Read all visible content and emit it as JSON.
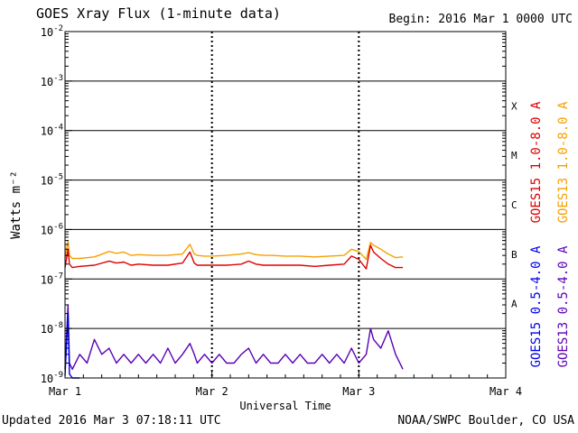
{
  "header": {
    "title": "GOES Xray Flux (1-minute data)",
    "begin": "Begin:  2016 Mar 1 0000 UTC"
  },
  "footer": {
    "updated": "Updated 2016 Mar  3 07:18:11 UTC",
    "credit": "NOAA/SWPC Boulder, CO USA"
  },
  "colors": {
    "goes15_long": "#dd0000",
    "goes13_long": "#f5a000",
    "goes15_short": "#0000ee",
    "goes13_short": "#5a00b4",
    "grid": "#000000"
  },
  "chart_data": {
    "type": "line",
    "title": "GOES Xray Flux (1-minute data)",
    "xlabel": "Universal Time",
    "ylabel": "Watts m⁻²",
    "yscale": "log",
    "ylim": [
      1e-09,
      0.01
    ],
    "xlim": [
      0,
      3
    ],
    "x_unit": "days since Mar 1 0000 UTC",
    "x_ticks": [
      {
        "value": 0,
        "label": "Mar 1"
      },
      {
        "value": 1,
        "label": "Mar 2"
      },
      {
        "value": 2,
        "label": "Mar 3"
      },
      {
        "value": 3,
        "label": "Mar 4"
      }
    ],
    "y_ticks": [
      {
        "exp": -9,
        "label": "10",
        "sup": "-9"
      },
      {
        "exp": -8,
        "label": "10",
        "sup": "-8"
      },
      {
        "exp": -7,
        "label": "10",
        "sup": "-7"
      },
      {
        "exp": -6,
        "label": "10",
        "sup": "-6"
      },
      {
        "exp": -5,
        "label": "10",
        "sup": "-5"
      },
      {
        "exp": -4,
        "label": "10",
        "sup": "-4"
      },
      {
        "exp": -3,
        "label": "10",
        "sup": "-3"
      },
      {
        "exp": -2,
        "label": "10",
        "sup": "-2"
      }
    ],
    "flare_classes": [
      {
        "label": "A",
        "exp": -8
      },
      {
        "label": "B",
        "exp": -7
      },
      {
        "label": "C",
        "exp": -6
      },
      {
        "label": "M",
        "exp": -5
      },
      {
        "label": "X",
        "exp": -4
      }
    ],
    "grid": true,
    "legend_right_top": [
      {
        "name": "GOES15 1.0-8.0 A",
        "color": "#dd0000"
      },
      {
        "name": "GOES13 1.0-8.0 A",
        "color": "#f5a000"
      }
    ],
    "legend_right_bottom": [
      {
        "name": "GOES15 0.5-4.0 A",
        "color": "#0000ee"
      },
      {
        "name": "GOES13 0.5-4.0 A",
        "color": "#5a00b4"
      }
    ],
    "series": [
      {
        "name": "GOES13 1.0-8.0 A",
        "color": "#f5a000",
        "x": [
          0.0,
          0.02,
          0.03,
          0.05,
          0.1,
          0.2,
          0.3,
          0.35,
          0.4,
          0.45,
          0.5,
          0.6,
          0.7,
          0.8,
          0.85,
          0.88,
          0.9,
          0.95,
          1.0,
          1.1,
          1.2,
          1.25,
          1.3,
          1.35,
          1.4,
          1.5,
          1.6,
          1.7,
          1.8,
          1.9,
          1.95,
          2.0,
          2.05,
          2.08,
          2.1,
          2.15,
          2.2,
          2.25,
          2.3
        ],
        "y": [
          2.6e-07,
          6e-07,
          3e-07,
          2.6e-07,
          2.6e-07,
          2.8e-07,
          3.6e-07,
          3.3e-07,
          3.5e-07,
          3e-07,
          3.1e-07,
          3e-07,
          3e-07,
          3.2e-07,
          5e-07,
          3.2e-07,
          3e-07,
          2.9e-07,
          2.9e-07,
          3e-07,
          3.2e-07,
          3.4e-07,
          3.1e-07,
          3e-07,
          3e-07,
          2.9e-07,
          2.9e-07,
          2.8e-07,
          2.9e-07,
          3e-07,
          4e-07,
          3.6e-07,
          2.5e-07,
          5.5e-07,
          4.8e-07,
          4e-07,
          3.2e-07,
          2.7e-07,
          2.8e-07
        ]
      },
      {
        "name": "GOES15 1.0-8.0 A",
        "color": "#dd0000",
        "x": [
          0.0,
          0.02,
          0.03,
          0.05,
          0.1,
          0.2,
          0.3,
          0.35,
          0.4,
          0.45,
          0.5,
          0.6,
          0.7,
          0.8,
          0.85,
          0.88,
          0.9,
          0.95,
          1.0,
          1.1,
          1.2,
          1.25,
          1.3,
          1.35,
          1.4,
          1.5,
          1.6,
          1.7,
          1.8,
          1.9,
          1.95,
          2.0,
          2.05,
          2.08,
          2.1,
          2.15,
          2.2,
          2.25,
          2.3
        ],
        "y": [
          1.7e-07,
          4e-07,
          2e-07,
          1.7e-07,
          1.8e-07,
          1.9e-07,
          2.3e-07,
          2.1e-07,
          2.2e-07,
          1.9e-07,
          2e-07,
          1.9e-07,
          1.9e-07,
          2.1e-07,
          3.5e-07,
          2.1e-07,
          1.9e-07,
          1.9e-07,
          1.9e-07,
          1.9e-07,
          2e-07,
          2.3e-07,
          2e-07,
          1.9e-07,
          1.9e-07,
          1.9e-07,
          1.9e-07,
          1.8e-07,
          1.9e-07,
          2e-07,
          2.9e-07,
          2.5e-07,
          1.6e-07,
          4.8e-07,
          3.5e-07,
          2.6e-07,
          2e-07,
          1.7e-07,
          1.7e-07
        ]
      },
      {
        "name": "GOES13 0.5-4.0 A",
        "color": "#5a00b4",
        "x": [
          0.0,
          0.02,
          0.03,
          0.05,
          0.1,
          0.15,
          0.2,
          0.25,
          0.3,
          0.35,
          0.4,
          0.45,
          0.5,
          0.55,
          0.6,
          0.65,
          0.7,
          0.75,
          0.8,
          0.85,
          0.88,
          0.9,
          0.95,
          1.0,
          1.05,
          1.1,
          1.15,
          1.2,
          1.25,
          1.3,
          1.35,
          1.4,
          1.45,
          1.5,
          1.55,
          1.6,
          1.65,
          1.7,
          1.75,
          1.8,
          1.85,
          1.9,
          1.95,
          2.0,
          2.05,
          2.08,
          2.1,
          2.15,
          2.2,
          2.25,
          2.3
        ],
        "y": [
          1.5e-09,
          3e-08,
          2e-09,
          1.5e-09,
          3e-09,
          2e-09,
          6e-09,
          3e-09,
          4e-09,
          2e-09,
          3e-09,
          2e-09,
          3e-09,
          2e-09,
          3e-09,
          2e-09,
          4e-09,
          2e-09,
          3e-09,
          5e-09,
          3e-09,
          2e-09,
          3e-09,
          2e-09,
          3e-09,
          2e-09,
          2e-09,
          3e-09,
          4e-09,
          2e-09,
          3e-09,
          2e-09,
          2e-09,
          3e-09,
          2e-09,
          3e-09,
          2e-09,
          2e-09,
          3e-09,
          2e-09,
          3e-09,
          2e-09,
          4e-09,
          2e-09,
          3e-09,
          1e-08,
          6e-09,
          4e-09,
          9e-09,
          3e-09,
          1.5e-09
        ]
      },
      {
        "name": "GOES15 0.5-4.0 A",
        "color": "#0000ee",
        "x": [
          0.0,
          0.02,
          0.03,
          0.05,
          0.1
        ],
        "y": [
          1.1e-09,
          2e-08,
          1.2e-09,
          1e-09,
          1e-09
        ]
      }
    ]
  }
}
